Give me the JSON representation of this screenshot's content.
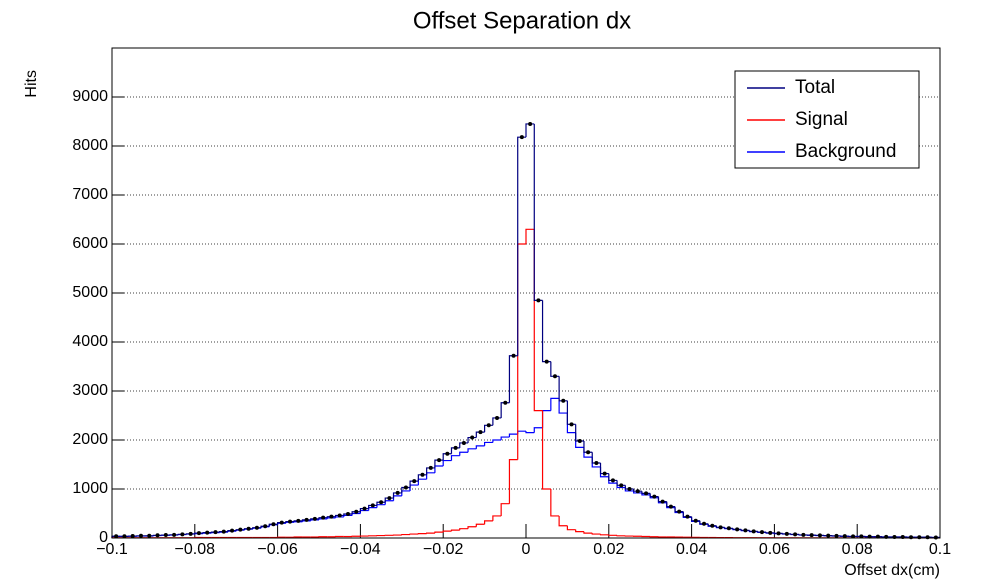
{
  "chart_data": {
    "type": "histogram",
    "title": "Offset Separation dx",
    "x_label": "Offset dx(cm)",
    "y_label": "Hits",
    "bins": [
      -0.1,
      -0.098,
      -0.096,
      -0.094,
      -0.092,
      -0.09,
      -0.088,
      -0.086,
      -0.084,
      -0.082,
      -0.08,
      -0.078,
      -0.076,
      -0.074,
      -0.072,
      -0.07,
      -0.068,
      -0.066,
      -0.064,
      -0.062,
      -0.06,
      -0.058,
      -0.056,
      -0.054,
      -0.052,
      -0.05,
      -0.048,
      -0.046,
      -0.044,
      -0.042,
      -0.04,
      -0.038,
      -0.036,
      -0.034,
      -0.032,
      -0.03,
      -0.028,
      -0.026,
      -0.024,
      -0.022,
      -0.02,
      -0.018,
      -0.016,
      -0.014,
      -0.012,
      -0.01,
      -0.008,
      -0.006,
      -0.004,
      -0.002,
      0,
      0.002,
      0.004,
      0.006,
      0.008,
      0.01,
      0.012,
      0.014,
      0.016,
      0.018,
      0.02,
      0.022,
      0.024,
      0.026,
      0.028,
      0.03,
      0.032,
      0.034,
      0.036,
      0.038,
      0.04,
      0.042,
      0.044,
      0.046,
      0.048,
      0.05,
      0.052,
      0.054,
      0.056,
      0.058,
      0.06,
      0.062,
      0.064,
      0.066,
      0.068,
      0.07,
      0.072,
      0.074,
      0.076,
      0.078,
      0.08,
      0.082,
      0.084,
      0.086,
      0.088,
      0.09,
      0.092,
      0.094,
      0.096,
      0.098,
      0.1
    ],
    "series": [
      {
        "name": "Total",
        "color": "#000080",
        "marker_color": "#000000",
        "values": [
          35,
          35,
          40,
          45,
          45,
          55,
          60,
          65,
          75,
          85,
          100,
          110,
          120,
          130,
          150,
          170,
          190,
          210,
          240,
          280,
          315,
          335,
          350,
          370,
          390,
          415,
          435,
          460,
          490,
          535,
          600,
          665,
          730,
          815,
          920,
          1030,
          1160,
          1290,
          1430,
          1590,
          1720,
          1840,
          1940,
          2050,
          2160,
          2300,
          2450,
          2760,
          3720,
          8180,
          8450,
          4850,
          3600,
          3300,
          2800,
          2320,
          1980,
          1750,
          1530,
          1315,
          1175,
          1075,
          1000,
          955,
          910,
          845,
          742,
          640,
          538,
          435,
          352,
          290,
          250,
          218,
          198,
          176,
          156,
          135,
          120,
          105,
          94,
          84,
          74,
          63,
          58,
          53,
          48,
          43,
          37,
          32,
          32,
          27,
          27,
          22,
          21,
          21,
          16,
          16,
          16,
          11
        ]
      },
      {
        "name": "Signal",
        "color": "#ff0000",
        "values": [
          5,
          5,
          5,
          5,
          5,
          5,
          5,
          5,
          5,
          5,
          10,
          10,
          10,
          10,
          10,
          10,
          10,
          10,
          10,
          10,
          15,
          15,
          20,
          20,
          20,
          25,
          25,
          30,
          30,
          35,
          40,
          45,
          50,
          55,
          60,
          70,
          80,
          90,
          100,
          120,
          140,
          160,
          190,
          230,
          280,
          350,
          450,
          700,
          1600,
          6000,
          6300,
          2600,
          1000,
          450,
          250,
          170,
          130,
          100,
          80,
          65,
          55,
          45,
          40,
          35,
          30,
          25,
          22,
          20,
          18,
          15,
          12,
          10,
          10,
          8,
          8,
          6,
          6,
          5,
          5,
          5,
          4,
          4,
          4,
          3,
          3,
          3,
          3,
          3,
          2,
          2,
          2,
          2,
          2,
          2,
          1,
          1,
          1,
          1,
          1,
          1
        ]
      },
      {
        "name": "Background",
        "color": "#0000ff",
        "values": [
          30,
          30,
          35,
          40,
          40,
          50,
          55,
          60,
          70,
          80,
          90,
          100,
          110,
          120,
          140,
          160,
          180,
          200,
          230,
          270,
          300,
          320,
          330,
          350,
          370,
          390,
          410,
          430,
          460,
          500,
          560,
          620,
          680,
          760,
          860,
          960,
          1080,
          1200,
          1330,
          1470,
          1580,
          1680,
          1750,
          1820,
          1880,
          1950,
          2000,
          2060,
          2120,
          2180,
          2150,
          2250,
          2600,
          2850,
          2550,
          2150,
          1850,
          1650,
          1450,
          1250,
          1120,
          1030,
          960,
          920,
          880,
          820,
          720,
          620,
          520,
          420,
          340,
          280,
          240,
          210,
          190,
          170,
          150,
          130,
          115,
          100,
          90,
          80,
          70,
          60,
          55,
          50,
          45,
          40,
          35,
          30,
          30,
          25,
          25,
          20,
          20,
          20,
          15,
          15,
          15,
          10
        ]
      }
    ],
    "xlim": [
      -0.1,
      0.1
    ],
    "xticks": [
      {
        "value": -0.1,
        "label": "−0.1"
      },
      {
        "value": -0.08,
        "label": "−0.08"
      },
      {
        "value": -0.06,
        "label": "−0.06"
      },
      {
        "value": -0.04,
        "label": "−0.04"
      },
      {
        "value": -0.02,
        "label": "−0.02"
      },
      0,
      0.02,
      0.04,
      0.06,
      0.08,
      0.1
    ],
    "ylim": [
      0,
      10000
    ],
    "yticks": [
      0,
      1000,
      2000,
      3000,
      4000,
      5000,
      6000,
      7000,
      8000,
      9000
    ],
    "grid": true,
    "legend": "top-right"
  }
}
